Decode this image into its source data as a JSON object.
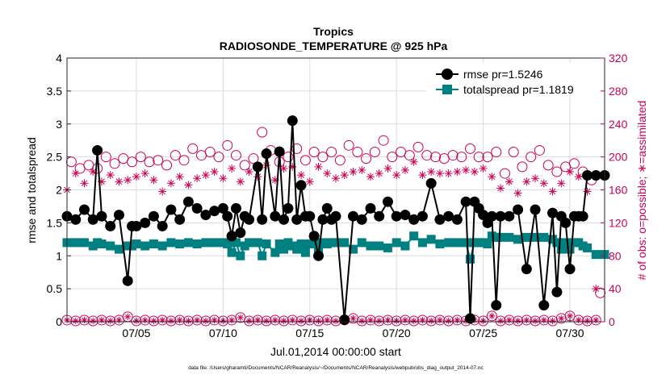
{
  "chart_data": {
    "type": "line",
    "title": "Tropics",
    "subtitle": "RADIOSONDE_TEMPERATURE @ 925 hPa",
    "xlabel": "Jul.01,2014 00:00:00 start",
    "ylabel": "rmse and totalspread",
    "ylabel_right": "# of obs: o=possible; ∗=assimilated",
    "footnote": "data file: /Users/gharamti/Documents/NCAR/Reanalysis/~/Documents/NCAR/Reanalysis/webpub/obs_diag_output_2014-07.nc",
    "xlim": [
      1,
      32
    ],
    "ylim": [
      0,
      4
    ],
    "ylim_right": [
      0,
      320
    ],
    "x_ticks": [
      5,
      10,
      15,
      20,
      25,
      30
    ],
    "x_tick_labels": [
      "07/05",
      "07/10",
      "07/15",
      "07/20",
      "07/25",
      "07/30"
    ],
    "y_ticks": [
      0,
      0.5,
      1,
      1.5,
      2,
      2.5,
      3,
      3.5,
      4
    ],
    "y_tick_labels": [
      "0",
      "0.5",
      "1",
      "1.5",
      "2",
      "2.5",
      "3",
      "3.5",
      "4"
    ],
    "y_right_ticks": [
      0,
      40,
      80,
      120,
      160,
      200,
      240,
      280,
      320
    ],
    "y_right_tick_labels": [
      "0",
      "40",
      "80",
      "120",
      "160",
      "200",
      "240",
      "280",
      "320"
    ],
    "grid": true,
    "legend_placement": "top-right",
    "colors": {
      "rmse": "#000000",
      "totalspread": "#008080",
      "obs": "#cc0055"
    },
    "series": [
      {
        "name": "rmse pr=1.5246",
        "marker": "circle",
        "x": [
          1.0,
          1.5,
          2.0,
          2.5,
          2.75,
          3.0,
          3.5,
          4.0,
          4.5,
          4.75,
          5.0,
          5.5,
          6.0,
          6.5,
          7.0,
          7.5,
          8.0,
          8.5,
          9.0,
          9.5,
          10.0,
          10.25,
          10.5,
          10.75,
          11.0,
          11.25,
          11.5,
          12.0,
          12.25,
          12.5,
          13.0,
          13.25,
          13.5,
          13.75,
          14.0,
          14.25,
          14.5,
          14.75,
          15.0,
          15.25,
          15.5,
          15.75,
          16.0,
          16.25,
          16.5,
          17.0,
          17.5,
          18.0,
          18.5,
          19.0,
          19.5,
          20.0,
          20.5,
          21.0,
          21.5,
          22.0,
          22.5,
          23.0,
          23.5,
          24.0,
          24.25,
          24.5,
          24.75,
          25.0,
          25.25,
          25.5,
          25.75,
          26.0,
          26.5,
          27.0,
          27.5,
          28.0,
          28.5,
          29.0,
          29.25,
          29.5,
          29.75,
          30.0,
          30.25,
          30.5,
          30.75,
          31.0,
          31.5,
          32.0
        ],
        "values": [
          1.6,
          1.55,
          1.7,
          1.55,
          2.6,
          1.6,
          1.45,
          1.62,
          0.62,
          1.45,
          1.45,
          1.5,
          1.6,
          1.45,
          1.7,
          1.55,
          1.82,
          1.72,
          1.62,
          1.68,
          1.72,
          1.6,
          1.3,
          1.72,
          1.35,
          1.6,
          1.55,
          2.35,
          1.55,
          2.55,
          1.6,
          2.58,
          1.55,
          1.72,
          3.05,
          1.55,
          2.07,
          1.6,
          1.6,
          1.3,
          1.0,
          1.55,
          1.72,
          1.55,
          1.6,
          0.03,
          1.6,
          1.55,
          1.72,
          1.6,
          1.82,
          1.6,
          1.62,
          1.55,
          1.6,
          2.1,
          1.55,
          1.6,
          1.55,
          1.82,
          0.05,
          1.82,
          1.72,
          1.62,
          1.5,
          1.6,
          0.25,
          1.6,
          1.6,
          1.7,
          0.8,
          1.7,
          0.25,
          1.65,
          0.45,
          1.6,
          1.5,
          0.8,
          1.6,
          1.6,
          1.6,
          2.22,
          2.22,
          2.22
        ]
      },
      {
        "name": "totalspread pr=1.1819",
        "marker": "square",
        "x": [
          1.0,
          1.5,
          2.0,
          2.5,
          2.75,
          3.0,
          3.5,
          4.0,
          4.5,
          4.75,
          5.0,
          5.5,
          6.0,
          6.5,
          7.0,
          7.5,
          8.0,
          8.5,
          9.0,
          9.5,
          10.0,
          10.25,
          10.5,
          10.75,
          11.0,
          11.25,
          11.5,
          12.0,
          12.25,
          12.5,
          13.0,
          13.25,
          13.5,
          13.75,
          14.0,
          14.25,
          14.5,
          14.75,
          15.0,
          15.25,
          15.5,
          15.75,
          16.0,
          16.25,
          16.5,
          17.0,
          17.5,
          18.0,
          18.5,
          19.0,
          19.5,
          20.0,
          20.5,
          21.0,
          21.5,
          22.0,
          22.5,
          23.0,
          23.5,
          24.0,
          24.25,
          24.5,
          24.75,
          25.0,
          25.25,
          25.5,
          25.75,
          26.0,
          26.5,
          27.0,
          27.5,
          28.0,
          28.5,
          29.0,
          29.25,
          29.5,
          29.75,
          30.0,
          30.25,
          30.5,
          30.75,
          31.0,
          31.5,
          32.0
        ],
        "values": [
          1.2,
          1.2,
          1.2,
          1.15,
          1.2,
          1.18,
          1.15,
          1.1,
          1.15,
          1.15,
          1.18,
          1.15,
          1.18,
          1.15,
          1.2,
          1.18,
          1.2,
          1.18,
          1.2,
          1.2,
          1.2,
          1.18,
          1.05,
          1.2,
          1.0,
          1.15,
          1.2,
          1.2,
          1.0,
          1.18,
          1.05,
          1.18,
          1.1,
          1.2,
          1.15,
          1.1,
          1.18,
          1.05,
          1.18,
          1.2,
          1.1,
          1.2,
          1.18,
          1.2,
          1.2,
          1.2,
          1.1,
          1.2,
          1.15,
          1.15,
          1.12,
          1.2,
          1.15,
          1.3,
          1.2,
          1.25,
          1.18,
          1.2,
          1.2,
          1.2,
          0.95,
          1.2,
          1.2,
          1.2,
          1.18,
          1.3,
          1.28,
          1.28,
          1.28,
          1.25,
          1.28,
          1.28,
          1.28,
          1.25,
          1.2,
          1.1,
          1.2,
          1.1,
          1.2,
          1.2,
          1.15,
          1.12,
          1.02,
          1.02
        ]
      },
      {
        "name": "# obs possible",
        "marker": "open-circle",
        "axis": "right",
        "x": [
          1.25,
          1.75,
          2.25,
          2.75,
          3.25,
          3.75,
          4.25,
          4.75,
          5.25,
          5.75,
          6.25,
          6.75,
          7.25,
          7.75,
          8.25,
          8.75,
          9.25,
          9.75,
          10.25,
          10.75,
          11.25,
          11.75,
          12.25,
          12.75,
          13.25,
          13.75,
          14.25,
          14.75,
          15.25,
          15.75,
          16.25,
          16.75,
          17.25,
          17.75,
          18.25,
          18.75,
          19.25,
          19.75,
          20.25,
          20.75,
          21.25,
          21.75,
          22.25,
          22.75,
          23.25,
          23.75,
          24.25,
          24.75,
          25.25,
          25.75,
          26.25,
          26.75,
          27.25,
          27.75,
          28.25,
          28.75,
          29.25,
          29.75,
          30.25,
          30.75,
          31.25,
          31.75
        ],
        "values": [
          194,
          186,
          190,
          186,
          200,
          192,
          198,
          194,
          200,
          194,
          196,
          190,
          202,
          196,
          210,
          202,
          206,
          200,
          214,
          202,
          190,
          198,
          230,
          208,
          194,
          200,
          210,
          196,
          206,
          200,
          206,
          196,
          214,
          206,
          198,
          206,
          220,
          200,
          206,
          202,
          212,
          202,
          200,
          198,
          202,
          200,
          210,
          200,
          200,
          206,
          180,
          206,
          188,
          200,
          208,
          190,
          182,
          188,
          192,
          182,
          172,
          35
        ]
      },
      {
        "name": "# obs assimilated",
        "marker": "asterisk",
        "axis": "right",
        "x": [
          1.0,
          1.5,
          2.0,
          2.5,
          3.0,
          3.5,
          4.0,
          4.5,
          5.0,
          5.5,
          6.0,
          6.5,
          7.0,
          7.5,
          8.0,
          8.5,
          9.0,
          9.5,
          10.0,
          10.5,
          11.0,
          11.5,
          12.0,
          12.5,
          13.0,
          13.5,
          14.0,
          14.5,
          15.0,
          15.5,
          16.0,
          16.5,
          17.0,
          17.5,
          18.0,
          18.5,
          19.0,
          19.5,
          20.0,
          20.5,
          21.0,
          21.5,
          22.0,
          22.5,
          23.0,
          23.5,
          24.0,
          24.5,
          25.0,
          25.5,
          26.0,
          26.5,
          27.0,
          27.5,
          28.0,
          28.5,
          29.0,
          29.5,
          30.0,
          30.5,
          31.0,
          31.5
        ],
        "values": [
          160,
          180,
          168,
          182,
          170,
          178,
          170,
          172,
          176,
          180,
          172,
          158,
          168,
          176,
          166,
          174,
          178,
          182,
          174,
          186,
          170,
          182,
          176,
          190,
          172,
          186,
          188,
          178,
          170,
          188,
          180,
          174,
          178,
          182,
          184,
          176,
          180,
          186,
          178,
          184,
          194,
          178,
          182,
          180,
          180,
          182,
          184,
          182,
          186,
          176,
          162,
          170,
          156,
          170,
          174,
          168,
          158,
          168,
          182,
          176,
          158,
          40
        ]
      },
      {
        "name": "# obs near zero (possible)",
        "marker": "open-circle",
        "axis": "right",
        "x": [
          1.0,
          1.5,
          2.0,
          2.5,
          3.0,
          3.5,
          4.0,
          4.5,
          5.0,
          5.5,
          6.0,
          6.5,
          7.0,
          7.5,
          8.0,
          8.5,
          9.0,
          9.5,
          10.0,
          10.5,
          11.0,
          11.5,
          12.0,
          12.5,
          13.0,
          13.5,
          14.0,
          14.5,
          15.0,
          15.5,
          16.0,
          16.5,
          17.0,
          17.5,
          18.0,
          18.5,
          19.0,
          19.5,
          20.0,
          20.5,
          21.0,
          21.5,
          22.0,
          22.5,
          23.0,
          23.5,
          24.0,
          24.5,
          25.0,
          25.5,
          26.0,
          26.5,
          27.0,
          27.5,
          28.0,
          28.5,
          29.0,
          29.5,
          30.0,
          30.5,
          31.0,
          31.5
        ],
        "values": [
          2,
          1,
          2,
          1,
          2,
          1,
          2,
          6,
          1,
          2,
          1,
          2,
          1,
          2,
          1,
          2,
          1,
          2,
          1,
          2,
          5,
          1,
          2,
          1,
          2,
          1,
          2,
          1,
          2,
          1,
          2,
          1,
          2,
          4,
          1,
          2,
          1,
          2,
          1,
          2,
          1,
          2,
          1,
          2,
          1,
          2,
          1,
          2,
          1,
          7,
          1,
          2,
          1,
          2,
          1,
          2,
          1,
          4,
          7,
          2,
          1,
          2
        ]
      }
    ]
  }
}
